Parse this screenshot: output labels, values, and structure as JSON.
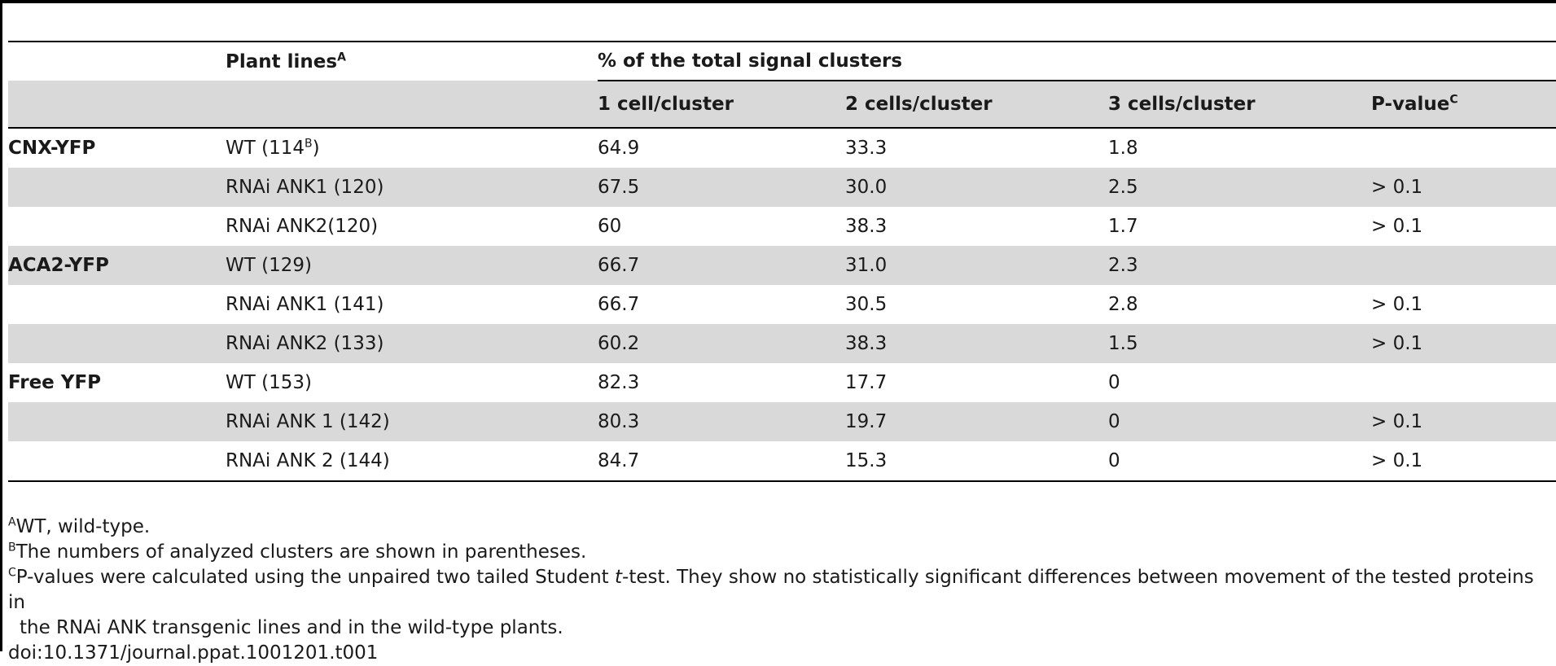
{
  "table": {
    "header": {
      "plant_lines": "Plant lines",
      "plant_lines_sup": "A",
      "group_title": "% of the total signal clusters",
      "col_1": "1 cell/cluster",
      "col_2": "2 cells/cluster",
      "col_3": "3 cells/cluster",
      "col_p": "P-value",
      "col_p_sup": "C"
    },
    "rows": [
      {
        "group": "CNX-YFP",
        "line": "WT (114",
        "line_sup": "B",
        "line_end": ")",
        "c1": "64.9",
        "c2": "33.3",
        "c3": "1.8",
        "p": ""
      },
      {
        "group": "",
        "line": "RNAi ANK1 (120)",
        "c1": "67.5",
        "c2": "30.0",
        "c3": "2.5",
        "p": "> 0.1"
      },
      {
        "group": "",
        "line": "RNAi ANK2(120)",
        "c1": "60",
        "c2": "38.3",
        "c3": "1.7",
        "p": "> 0.1"
      },
      {
        "group": "ACA2-YFP",
        "line": "WT (129)",
        "c1": "66.7",
        "c2": "31.0",
        "c3": "2.3",
        "p": ""
      },
      {
        "group": "",
        "line": "RNAi ANK1 (141)",
        "c1": "66.7",
        "c2": "30.5",
        "c3": "2.8",
        "p": "> 0.1"
      },
      {
        "group": "",
        "line": "RNAi ANK2 (133)",
        "c1": "60.2",
        "c2": "38.3",
        "c3": "1.5",
        "p": "> 0.1"
      },
      {
        "group": "Free YFP",
        "line": "WT (153)",
        "c1": "82.3",
        "c2": "17.7",
        "c3": "0",
        "p": ""
      },
      {
        "group": "",
        "line": "RNAi ANK 1 (142)",
        "c1": "80.3",
        "c2": "19.7",
        "c3": "0",
        "p": "> 0.1"
      },
      {
        "group": "",
        "line": "RNAi ANK 2 (144)",
        "c1": "84.7",
        "c2": "15.3",
        "c3": "0",
        "p": "> 0.1"
      }
    ]
  },
  "footnotes": {
    "a_mark": "A",
    "a_text": "WT, wild-type.",
    "b_mark": "B",
    "b_text": "The numbers of analyzed clusters are shown in parentheses.",
    "c_mark": "C",
    "c_text_1": "P-values were calculated using the unpaired two tailed Student ",
    "c_text_italic": "t",
    "c_text_2": "-test. They show no statistically significant differences between movement of the tested proteins in",
    "c_text_3": "the RNAi ANK transgenic lines and in the wild-type plants.",
    "doi": "doi:10.1371/journal.ppat.1001201.t001"
  },
  "colors": {
    "shade": "#d9d9d9",
    "rule": "#000000"
  }
}
